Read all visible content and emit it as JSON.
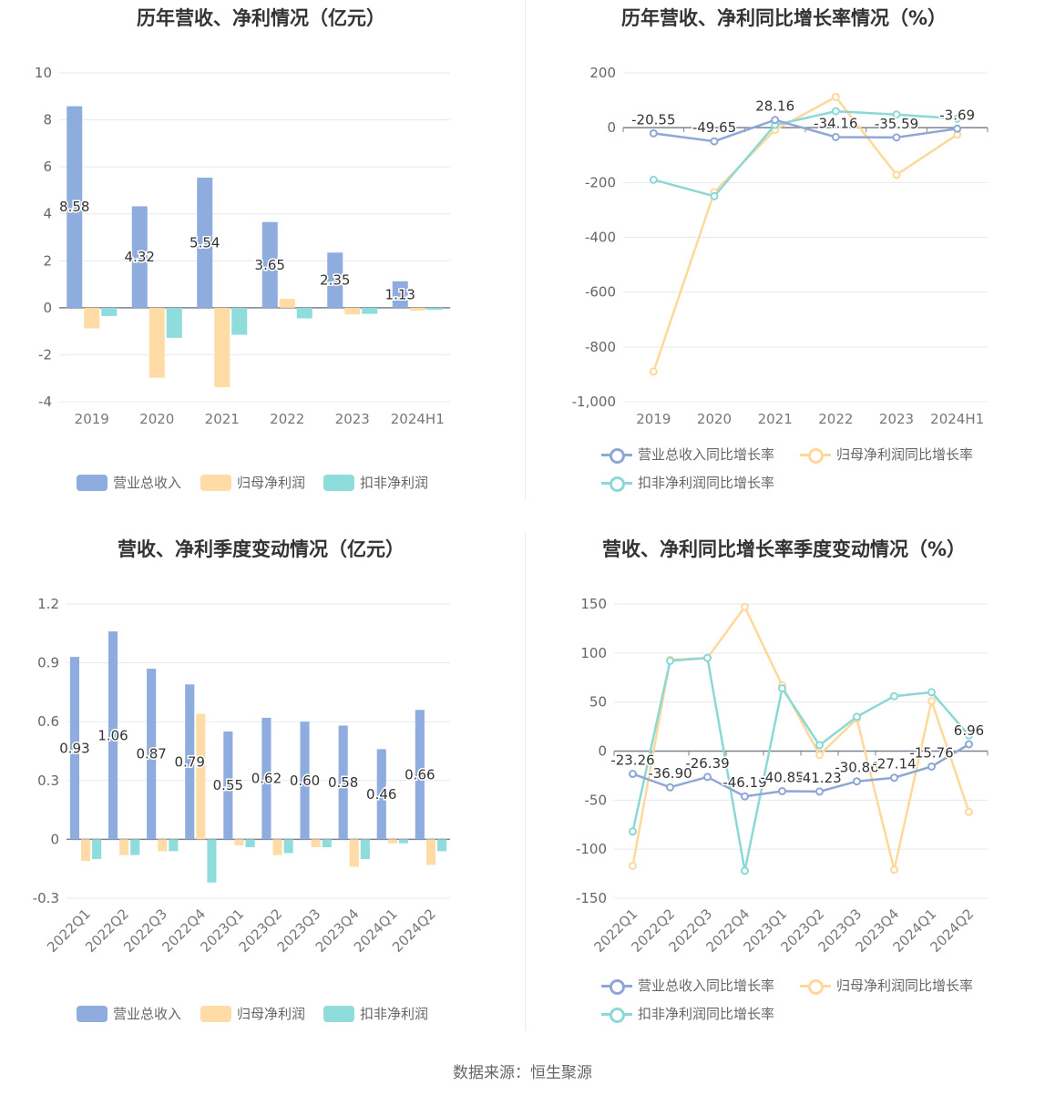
{
  "colors": {
    "revenue": "#8eacde",
    "net": "#ffdca6",
    "deducted": "#8fdcdc",
    "revenue_line": "#8fa7d6",
    "net_line": "#ffd89a",
    "deducted_line": "#8bd8d6"
  },
  "legend_bar": [
    "营业总收入",
    "归母净利润",
    "扣非净利润"
  ],
  "legend_line": [
    "营业总收入同比增长率",
    "归母净利润同比增长率",
    "扣非净利润同比增长率"
  ],
  "source": "数据来源：恒生聚源",
  "chart_data": [
    {
      "title": "历年营收、净利情况（亿元）",
      "type": "bar",
      "categories": [
        "2019",
        "2020",
        "2021",
        "2022",
        "2023",
        "2024H1"
      ],
      "ylim": [
        -4,
        10
      ],
      "yticks": [
        "10",
        "8",
        "6",
        "4",
        "2",
        "0",
        "-2",
        "-4"
      ],
      "series": [
        {
          "name": "营业总收入",
          "values": [
            8.58,
            4.32,
            5.54,
            3.65,
            2.35,
            1.13
          ]
        },
        {
          "name": "归母净利润",
          "values": [
            -0.88,
            -2.98,
            -3.38,
            0.38,
            -0.28,
            -0.12
          ]
        },
        {
          "name": "扣非净利润",
          "values": [
            -0.35,
            -1.28,
            -1.15,
            -0.45,
            -0.26,
            -0.09
          ]
        }
      ],
      "data_labels": [
        "8.58",
        "4.32",
        "5.54",
        "3.65",
        "2.35",
        "1.13"
      ]
    },
    {
      "title": "历年营收、净利同比增长率情况（%）",
      "type": "line",
      "categories": [
        "2019",
        "2020",
        "2021",
        "2022",
        "2023",
        "2024H1"
      ],
      "ylim": [
        -1000,
        200
      ],
      "yticks": [
        "200",
        "0",
        "-200",
        "-400",
        "-600",
        "-800",
        "-1,000"
      ],
      "series": [
        {
          "name": "营业总收入同比增长率",
          "values": [
            -20.55,
            -49.65,
            28.16,
            -34.16,
            -35.59,
            -3.69
          ]
        },
        {
          "name": "归母净利润同比增长率",
          "values": [
            -890,
            -235,
            -8,
            112,
            -172,
            -25
          ]
        },
        {
          "name": "扣非净利润同比增长率",
          "values": [
            -190,
            -250,
            10,
            60,
            48,
            33
          ]
        }
      ],
      "data_labels": [
        "-20.55",
        "-49.65",
        "28.16",
        "-34.16",
        "-35.59",
        "-3.69"
      ]
    },
    {
      "title": "营收、净利季度变动情况（亿元）",
      "type": "bar",
      "categories": [
        "2022Q1",
        "2022Q2",
        "2022Q3",
        "2022Q4",
        "2023Q1",
        "2023Q2",
        "2023Q3",
        "2023Q4",
        "2024Q1",
        "2024Q2"
      ],
      "ylim": [
        -0.3,
        1.2
      ],
      "yticks": [
        "1.2",
        "0.9",
        "0.6",
        "0.3",
        "0",
        "-0.3"
      ],
      "series": [
        {
          "name": "营业总收入",
          "values": [
            0.93,
            1.06,
            0.87,
            0.79,
            0.55,
            0.62,
            0.6,
            0.58,
            0.46,
            0.66
          ]
        },
        {
          "name": "归母净利润",
          "values": [
            -0.11,
            -0.08,
            -0.06,
            0.64,
            -0.03,
            -0.08,
            -0.04,
            -0.14,
            -0.02,
            -0.13
          ]
        },
        {
          "name": "扣非净利润",
          "values": [
            -0.1,
            -0.08,
            -0.06,
            -0.22,
            -0.04,
            -0.07,
            -0.04,
            -0.1,
            -0.02,
            -0.06
          ]
        }
      ],
      "data_labels": [
        "0.93",
        "1.06",
        "0.87",
        "0.79",
        "0.55",
        "0.62",
        "0.60",
        "0.58",
        "0.46",
        "0.66"
      ]
    },
    {
      "title": "营收、净利同比增长率季度变动情况（%）",
      "type": "line",
      "categories": [
        "2022Q1",
        "2022Q2",
        "2022Q3",
        "2022Q4",
        "2023Q1",
        "2023Q2",
        "2023Q3",
        "2023Q4",
        "2024Q1",
        "2024Q2"
      ],
      "ylim": [
        -150,
        150
      ],
      "yticks": [
        "150",
        "100",
        "50",
        "0",
        "-50",
        "-100",
        "-150"
      ],
      "series": [
        {
          "name": "营业总收入同比增长率",
          "values": [
            -23.26,
            -36.9,
            -26.39,
            -46.19,
            -40.85,
            -41.23,
            -30.86,
            -27.14,
            -15.76,
            6.96
          ]
        },
        {
          "name": "归母净利润同比增长率",
          "values": [
            -117,
            93,
            95,
            147,
            67,
            -4,
            33,
            -121,
            51,
            -62
          ]
        },
        {
          "name": "扣非净利润同比增长率",
          "values": [
            -82,
            92,
            95,
            -122,
            64,
            6,
            35,
            56,
            60,
            16
          ]
        }
      ],
      "data_labels": [
        "-23.26",
        "-36.90",
        "-26.39",
        "-46.19",
        "-40.85",
        "-41.23",
        "-30.86",
        "-27.14",
        "-15.76",
        "6.96"
      ]
    }
  ]
}
